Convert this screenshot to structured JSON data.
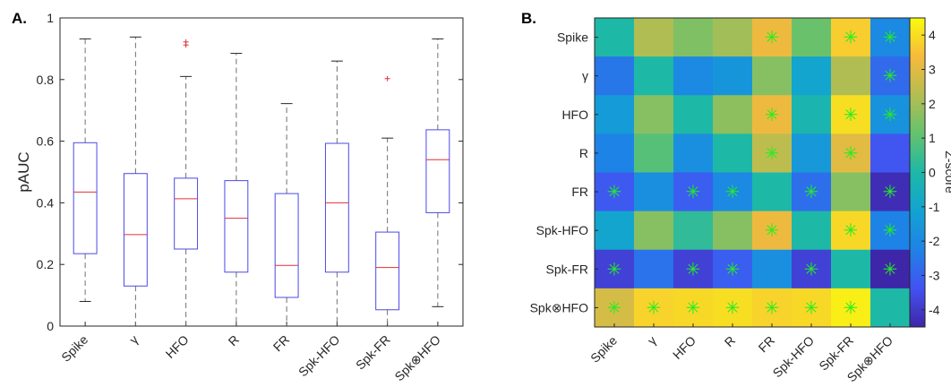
{
  "chart_data": [
    {
      "type": "box",
      "panel_label": "A.",
      "ylabel": "pAUC",
      "ylim": [
        0,
        1
      ],
      "yticks": [
        "0",
        "0.2",
        "0.4",
        "0.6",
        "0.8",
        "1"
      ],
      "categories": [
        "Spike",
        "γ",
        "HFO",
        "R",
        "FR",
        "Spk-HFO",
        "Spk-FR",
        "Spk⊗HFO"
      ],
      "boxes": [
        {
          "whisker_low": 0.08,
          "q1": 0.235,
          "median": 0.435,
          "q3": 0.595,
          "whisker_high": 0.932,
          "outliers": []
        },
        {
          "whisker_low": 0.0,
          "q1": 0.13,
          "median": 0.297,
          "q3": 0.495,
          "whisker_high": 0.938,
          "outliers": []
        },
        {
          "whisker_low": 0.0,
          "q1": 0.25,
          "median": 0.413,
          "q3": 0.48,
          "whisker_high": 0.81,
          "outliers": [
            0.912,
            0.922
          ]
        },
        {
          "whisker_low": 0.0,
          "q1": 0.175,
          "median": 0.35,
          "q3": 0.472,
          "whisker_high": 0.885,
          "outliers": []
        },
        {
          "whisker_low": 0.0,
          "q1": 0.093,
          "median": 0.197,
          "q3": 0.43,
          "whisker_high": 0.722,
          "outliers": []
        },
        {
          "whisker_low": 0.0,
          "q1": 0.175,
          "median": 0.4,
          "q3": 0.593,
          "whisker_high": 0.86,
          "outliers": []
        },
        {
          "whisker_low": 0.0,
          "q1": 0.053,
          "median": 0.19,
          "q3": 0.305,
          "whisker_high": 0.61,
          "outliers": [
            0.803
          ]
        },
        {
          "whisker_low": 0.063,
          "q1": 0.368,
          "median": 0.54,
          "q3": 0.637,
          "whisker_high": 0.932,
          "outliers": []
        }
      ],
      "colors": {
        "box": "#4a4ae6",
        "median": "#e0303a",
        "whisker": "#707070",
        "outlier": "#e0303a"
      }
    },
    {
      "type": "heatmap",
      "panel_label": "B.",
      "rows": [
        "Spike",
        "γ",
        "HFO",
        "R",
        "FR",
        "Spk-HFO",
        "Spk-FR",
        "Spk⊗HFO"
      ],
      "cols": [
        "Spike",
        "γ",
        "HFO",
        "R",
        "FR",
        "Spk-HFO",
        "Spk-FR",
        "Spk⊗HFO"
      ],
      "values": [
        [
          0.0,
          2.2,
          1.5,
          2.0,
          3.2,
          1.2,
          3.7,
          -2.0
        ],
        [
          -2.5,
          0.0,
          -2.0,
          -1.6,
          1.6,
          -1.0,
          2.2,
          -2.8
        ],
        [
          -1.4,
          1.6,
          0.0,
          1.7,
          3.2,
          -0.2,
          4.0,
          -1.7
        ],
        [
          -2.2,
          0.9,
          -1.8,
          0.0,
          2.4,
          -1.5,
          3.0,
          -3.3
        ],
        [
          -3.2,
          -1.8,
          -3.1,
          -2.0,
          0.0,
          -2.7,
          1.6,
          -4.3
        ],
        [
          -1.0,
          1.6,
          0.3,
          1.6,
          3.2,
          0.0,
          3.9,
          -2.2
        ],
        [
          -3.8,
          -2.6,
          -3.8,
          -3.1,
          -1.8,
          -3.8,
          0.0,
          -4.5
        ],
        [
          2.8,
          3.8,
          3.9,
          4.0,
          3.8,
          3.9,
          4.3,
          0.0
        ]
      ],
      "significant": [
        [
          0,
          0,
          0,
          0,
          1,
          0,
          1,
          1
        ],
        [
          0,
          0,
          0,
          0,
          0,
          0,
          0,
          1
        ],
        [
          0,
          0,
          0,
          0,
          1,
          0,
          1,
          1
        ],
        [
          0,
          0,
          0,
          0,
          1,
          0,
          1,
          0
        ],
        [
          1,
          0,
          1,
          1,
          0,
          1,
          0,
          1
        ],
        [
          0,
          0,
          0,
          0,
          1,
          0,
          1,
          1
        ],
        [
          1,
          0,
          1,
          1,
          0,
          1,
          0,
          1
        ],
        [
          1,
          1,
          1,
          1,
          1,
          1,
          1,
          0
        ]
      ],
      "colormap": "parula",
      "colorbar": {
        "label": "Z-score",
        "ticks": [
          "4",
          "3",
          "2",
          "1",
          "0",
          "-1",
          "-2",
          "-3",
          "-4"
        ],
        "range": [
          -4.5,
          4.5
        ]
      },
      "marker_symbol": "✳",
      "marker_color": "#22ee22"
    }
  ]
}
